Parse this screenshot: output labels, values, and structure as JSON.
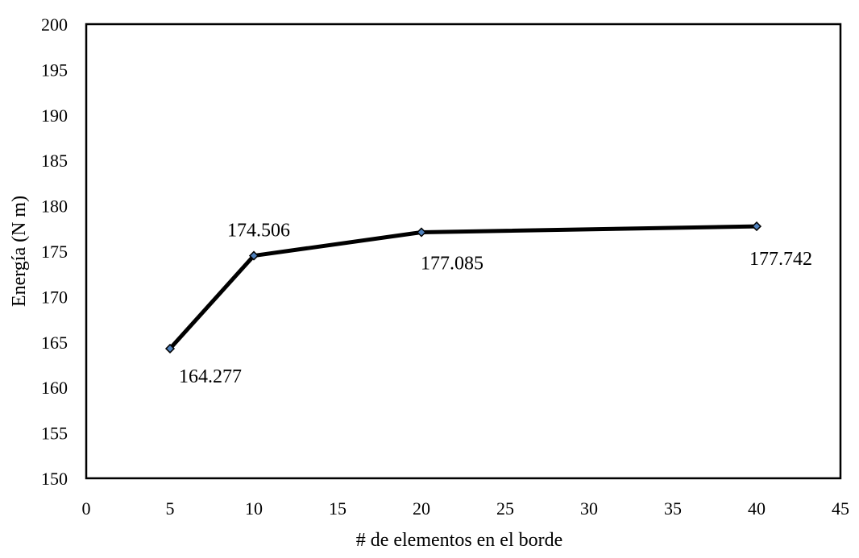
{
  "chart_data": {
    "type": "line",
    "title": "",
    "xlabel": "# de elementos en el borde",
    "ylabel": "Energía (N m)",
    "xlim": [
      0,
      45
    ],
    "ylim": [
      150,
      200
    ],
    "xticks": [
      0,
      5,
      10,
      15,
      20,
      25,
      30,
      35,
      40,
      45
    ],
    "yticks": [
      150,
      155,
      160,
      165,
      170,
      175,
      180,
      185,
      190,
      195,
      200
    ],
    "grid": false,
    "legend": "none",
    "series": [
      {
        "x": [
          5,
          10,
          20,
          40
        ],
        "y": [
          164.277,
          174.506,
          177.085,
          177.742
        ],
        "labels": [
          "164.277",
          "174.506",
          "177.085",
          "177.742"
        ],
        "line_color": "#000000",
        "marker": "diamond",
        "marker_color": "#4F81BD"
      }
    ]
  }
}
